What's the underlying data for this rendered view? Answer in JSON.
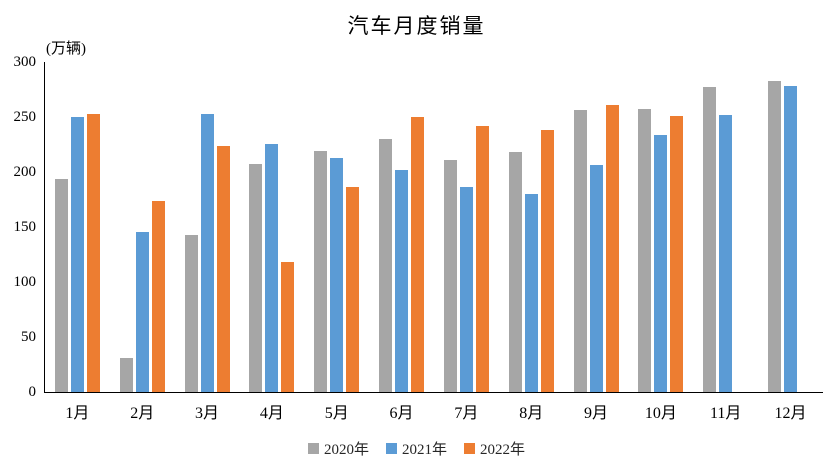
{
  "chart_data": {
    "type": "bar",
    "title": "汽车月度销量",
    "unit": "(万辆)",
    "categories": [
      "1月",
      "2月",
      "3月",
      "4月",
      "5月",
      "6月",
      "7月",
      "8月",
      "9月",
      "10月",
      "11月",
      "12月"
    ],
    "series": [
      {
        "name": "2020年",
        "color": "#A6A6A6",
        "values": [
          194.1,
          31.0,
          143.0,
          207.0,
          219.4,
          230.0,
          211.2,
          218.6,
          256.5,
          257.3,
          277.0,
          283.1
        ]
      },
      {
        "name": "2021年",
        "color": "#5B9BD5",
        "values": [
          250.3,
          145.5,
          252.6,
          225.2,
          212.8,
          201.5,
          186.4,
          179.9,
          206.7,
          233.3,
          252.2,
          278.6
        ]
      },
      {
        "name": "2022年",
        "color": "#ED7D31",
        "values": [
          253.1,
          173.5,
          223.4,
          118.1,
          186.2,
          250.2,
          242.0,
          238.3,
          261.0,
          250.5,
          null,
          null
        ]
      }
    ],
    "ylim": [
      0,
      300
    ],
    "y_ticks": [
      0,
      50,
      100,
      150,
      200,
      250,
      300
    ],
    "grid": false,
    "legend_position": "bottom",
    "axis_color": "#000000"
  }
}
